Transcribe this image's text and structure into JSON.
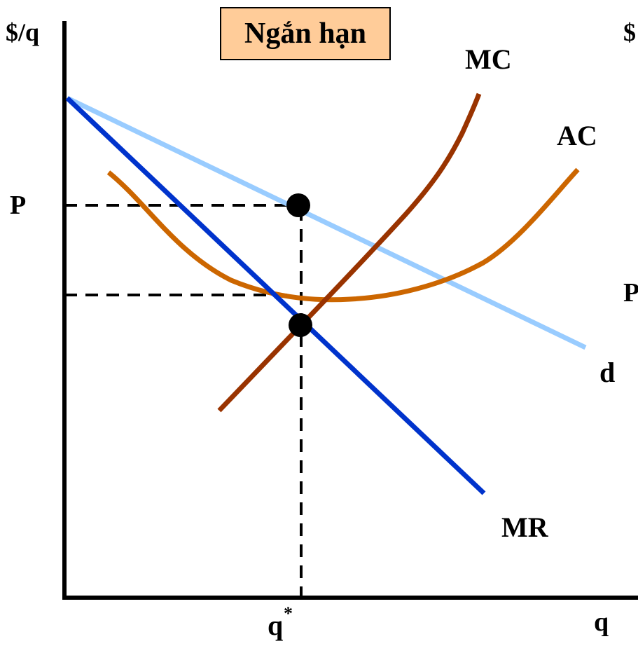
{
  "title": "Ngắn hạn",
  "labels": {
    "y_axis": "$/q",
    "y_axis_right": "$",
    "x_axis": "q",
    "price": "P",
    "price_right": "P",
    "quantity": "q",
    "quantity_sup": "*",
    "mc": "MC",
    "ac": "AC",
    "demand": "d",
    "mr": "MR"
  },
  "colors": {
    "demand": "#99ccff",
    "mr": "#0033cc",
    "mc": "#993300",
    "ac": "#cc6600",
    "axis": "#000000",
    "title_box": "#ffcc99"
  }
}
